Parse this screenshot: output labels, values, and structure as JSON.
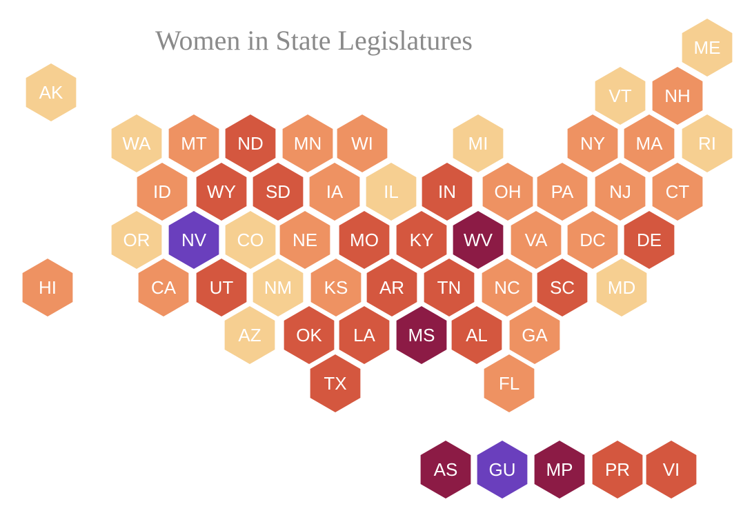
{
  "chart_data": {
    "type": "hex-tile-map",
    "title": "Women in State Legislatures",
    "category_colors": {
      "light": "#f6cf91",
      "medium": "#ee9262",
      "dark": "#d4573f",
      "darkest": "#8c1b45",
      "purple": "#6a3fbd"
    },
    "tiles": [
      {
        "abbr": "AK",
        "category": "light"
      },
      {
        "abbr": "ME",
        "category": "light"
      },
      {
        "abbr": "VT",
        "category": "light"
      },
      {
        "abbr": "NH",
        "category": "medium"
      },
      {
        "abbr": "WA",
        "category": "light"
      },
      {
        "abbr": "MT",
        "category": "medium"
      },
      {
        "abbr": "ND",
        "category": "dark"
      },
      {
        "abbr": "MN",
        "category": "medium"
      },
      {
        "abbr": "WI",
        "category": "medium"
      },
      {
        "abbr": "MI",
        "category": "light"
      },
      {
        "abbr": "NY",
        "category": "medium"
      },
      {
        "abbr": "MA",
        "category": "medium"
      },
      {
        "abbr": "RI",
        "category": "light"
      },
      {
        "abbr": "ID",
        "category": "medium"
      },
      {
        "abbr": "WY",
        "category": "dark"
      },
      {
        "abbr": "SD",
        "category": "dark"
      },
      {
        "abbr": "IA",
        "category": "medium"
      },
      {
        "abbr": "IL",
        "category": "light"
      },
      {
        "abbr": "IN",
        "category": "dark"
      },
      {
        "abbr": "OH",
        "category": "medium"
      },
      {
        "abbr": "PA",
        "category": "medium"
      },
      {
        "abbr": "NJ",
        "category": "medium"
      },
      {
        "abbr": "CT",
        "category": "medium"
      },
      {
        "abbr": "OR",
        "category": "light"
      },
      {
        "abbr": "NV",
        "category": "purple"
      },
      {
        "abbr": "CO",
        "category": "light"
      },
      {
        "abbr": "NE",
        "category": "medium"
      },
      {
        "abbr": "MO",
        "category": "dark"
      },
      {
        "abbr": "KY",
        "category": "dark"
      },
      {
        "abbr": "WV",
        "category": "darkest"
      },
      {
        "abbr": "VA",
        "category": "medium"
      },
      {
        "abbr": "DC",
        "category": "medium"
      },
      {
        "abbr": "DE",
        "category": "dark"
      },
      {
        "abbr": "HI",
        "category": "medium"
      },
      {
        "abbr": "CA",
        "category": "medium"
      },
      {
        "abbr": "UT",
        "category": "dark"
      },
      {
        "abbr": "NM",
        "category": "light"
      },
      {
        "abbr": "KS",
        "category": "medium"
      },
      {
        "abbr": "AR",
        "category": "dark"
      },
      {
        "abbr": "TN",
        "category": "dark"
      },
      {
        "abbr": "NC",
        "category": "medium"
      },
      {
        "abbr": "SC",
        "category": "dark"
      },
      {
        "abbr": "MD",
        "category": "light"
      },
      {
        "abbr": "AZ",
        "category": "light"
      },
      {
        "abbr": "OK",
        "category": "dark"
      },
      {
        "abbr": "LA",
        "category": "dark"
      },
      {
        "abbr": "MS",
        "category": "darkest"
      },
      {
        "abbr": "AL",
        "category": "dark"
      },
      {
        "abbr": "GA",
        "category": "medium"
      },
      {
        "abbr": "TX",
        "category": "dark"
      },
      {
        "abbr": "FL",
        "category": "medium"
      },
      {
        "abbr": "AS",
        "category": "darkest"
      },
      {
        "abbr": "GU",
        "category": "purple"
      },
      {
        "abbr": "MP",
        "category": "darkest"
      },
      {
        "abbr": "PR",
        "category": "dark"
      },
      {
        "abbr": "VI",
        "category": "dark"
      }
    ]
  }
}
